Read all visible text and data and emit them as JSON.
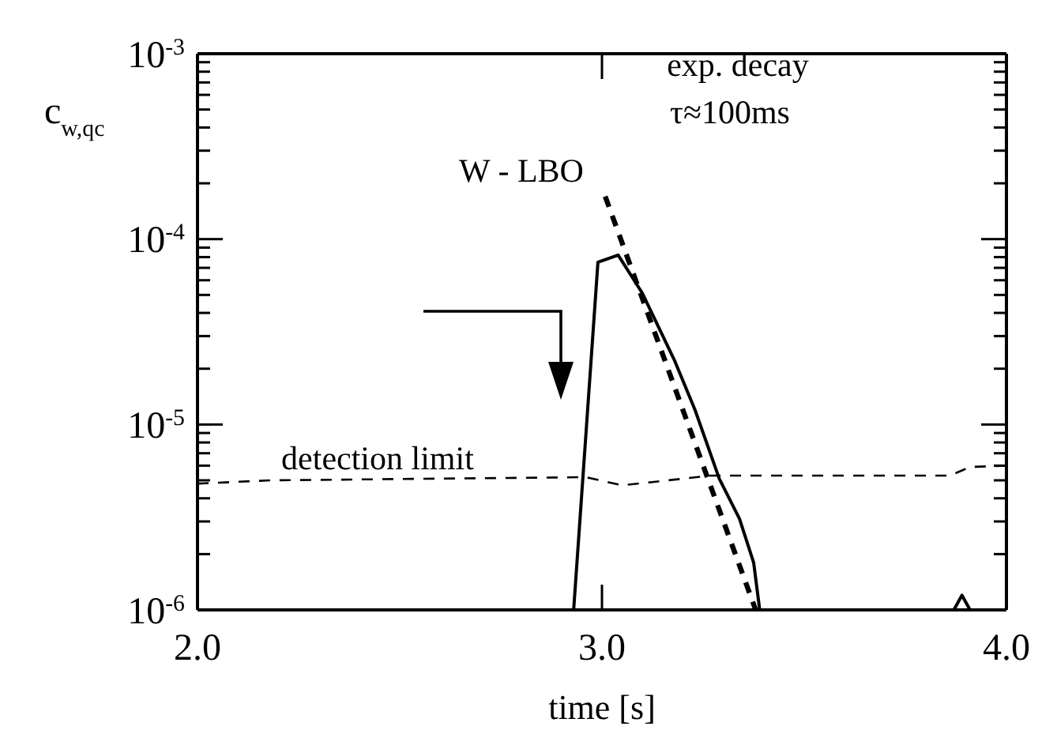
{
  "chart_data": {
    "type": "line",
    "xlabel": "time [s]",
    "ylabel": "c$_{w,qc}$",
    "log": "y",
    "xlim": [
      2.0,
      4.0
    ],
    "xticks": [
      {
        "value": 2,
        "label": "2.0"
      },
      {
        "value": 3,
        "label": "3.0"
      },
      {
        "value": 4,
        "label": "4.0"
      }
    ],
    "ylim": [
      1e-06,
      0.001
    ],
    "yticks": [
      {
        "value": 1e-06,
        "label": "10$^{-6}$"
      },
      {
        "value": 2e-06,
        "label": null
      },
      {
        "value": 3e-06,
        "label": null
      },
      {
        "value": 4e-06,
        "label": null
      },
      {
        "value": 5e-06,
        "label": null
      },
      {
        "value": 6e-06,
        "label": null
      },
      {
        "value": 7e-06,
        "label": null
      },
      {
        "value": 8e-06,
        "label": null
      },
      {
        "value": 9e-06,
        "label": null
      },
      {
        "value": 1e-05,
        "label": "10$^{-5}$"
      },
      {
        "value": 2e-05,
        "label": null
      },
      {
        "value": 3e-05,
        "label": null
      },
      {
        "value": 4e-05,
        "label": null
      },
      {
        "value": 5e-05,
        "label": null
      },
      {
        "value": 6e-05,
        "label": null
      },
      {
        "value": 7e-05,
        "label": null
      },
      {
        "value": 8e-05,
        "label": null
      },
      {
        "value": 9e-05,
        "label": null
      },
      {
        "value": 0.0001,
        "label": "10$^{-4}$"
      },
      {
        "value": 0.0002,
        "label": null
      },
      {
        "value": 0.0003,
        "label": null
      },
      {
        "value": 0.0004,
        "label": null
      },
      {
        "value": 0.0005,
        "label": null
      },
      {
        "value": 0.0006,
        "label": null
      },
      {
        "value": 0.0007,
        "label": null
      },
      {
        "value": 0.0008,
        "label": null
      },
      {
        "value": 0.0009,
        "label": null
      },
      {
        "value": 0.001,
        "label": "10$^{-3}$"
      }
    ],
    "grid": false,
    "series": [
      {
        "color": "#000000",
        "line_style": "solid",
        "x": [
          2.93,
          2.99,
          3.04,
          3.1,
          3.18,
          3.23,
          3.29,
          3.34,
          3.375,
          3.39,
          3.6,
          3.87,
          3.89,
          3.91
        ],
        "values": [
          1e-06,
          7.5e-05,
          8.2e-05,
          5.1e-05,
          2.2e-05,
          1.2e-05,
          5.1e-06,
          3.1e-06,
          1.8e-06,
          1e-06,
          null,
          1e-06,
          1.2e-06,
          1e-06
        ]
      },
      {
        "color": "#000000",
        "line_style": "dashed",
        "x": [
          3.008,
          3.38
        ],
        "values": [
          0.00017,
          1e-06
        ]
      },
      {
        "color": "#000000",
        "line_style": "dashed",
        "x": [
          2.0,
          2.18,
          2.96,
          3.05,
          3.27,
          3.86,
          3.91,
          4.0
        ],
        "values": [
          4.8e-06,
          5e-06,
          5.2e-06,
          4.7e-06,
          5.3e-06,
          5.3e-06,
          5.9e-06,
          6e-06
        ]
      }
    ],
    "annotations": [
      "detection limit",
      "W - LBO",
      "exp. decay",
      "τ≈100ms"
    ]
  }
}
